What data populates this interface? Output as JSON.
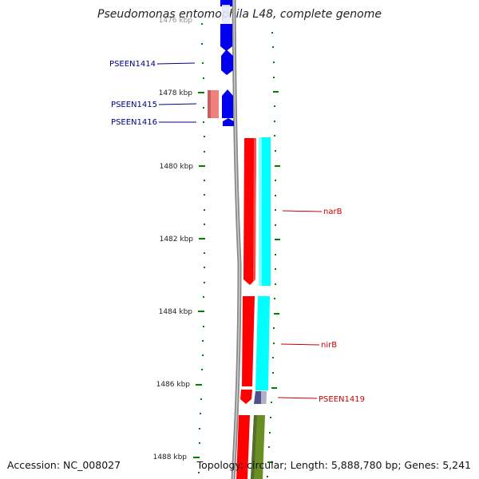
{
  "title": "Pseudomonas entomophila L48, complete genome",
  "footer": {
    "accession": "Accession: NC_008027",
    "topology": "Topology: circular; Length: 5,888,780 bp; Genes: 5,241"
  },
  "tick_labels": [
    "1476 kbp",
    "1478 kbp",
    "1480 kbp",
    "1482 kbp",
    "1484 kbp",
    "1486 kbp",
    "1488 kbp"
  ],
  "left_labels": [
    "PSEEN1414",
    "PSEEN1415",
    "PSEEN1416"
  ],
  "right_labels": [
    "narB",
    "nirB",
    "PSEEN1419"
  ],
  "colors": {
    "backbone": "#888888",
    "tick": "#008000",
    "blue_gene": "#0000ee",
    "pink_gene": "#f08080",
    "red_gene": "#ff0000",
    "cyan_gene": "#00ffff",
    "green_gene": "#6b8e23",
    "left_label": "#00008b",
    "right_label": "#cc0000"
  }
}
